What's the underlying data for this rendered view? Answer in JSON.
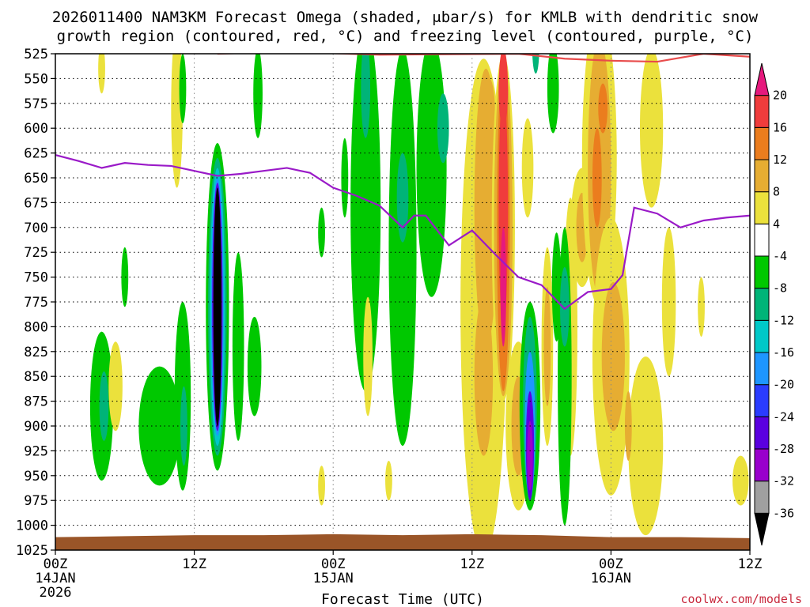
{
  "chart_data": {
    "type": "heatmap",
    "title_line1": "2026011400 NAM3KM Forecast Omega (shaded, μbar/s) for KMLB with dendritic snow",
    "title_line2": "growth region (contoured, red, °C) and freezing level (contoured, purple, °C)",
    "xlabel": "Forecast Time (UTC)",
    "ylabel": "",
    "credit": "coolwx.com/models",
    "xlim": [
      0,
      60
    ],
    "ylim": [
      1025,
      525
    ],
    "y_ticks": [
      525,
      550,
      575,
      600,
      625,
      650,
      675,
      700,
      725,
      750,
      775,
      800,
      825,
      850,
      875,
      900,
      925,
      950,
      975,
      1000,
      1025
    ],
    "x_ticks": [
      {
        "hour": 0,
        "label": "00Z",
        "sub1": "14JAN",
        "sub2": "2026"
      },
      {
        "hour": 12,
        "label": "12Z",
        "sub1": "",
        "sub2": ""
      },
      {
        "hour": 24,
        "label": "00Z",
        "sub1": "15JAN",
        "sub2": ""
      },
      {
        "hour": 36,
        "label": "12Z",
        "sub1": "",
        "sub2": ""
      },
      {
        "hour": 48,
        "label": "00Z",
        "sub1": "16JAN",
        "sub2": ""
      },
      {
        "hour": 60,
        "label": "12Z",
        "sub1": "",
        "sub2": ""
      }
    ],
    "colorbar": {
      "levels": [
        -36,
        -32,
        -28,
        -24,
        -20,
        -16,
        -12,
        -8,
        -4,
        4,
        8,
        12,
        16,
        20
      ],
      "labels": [
        "-36",
        "-32",
        "-28",
        "-24",
        "-20",
        "-16",
        "-12",
        "-8",
        "-4",
        "4",
        "8",
        "12",
        "16",
        "20"
      ],
      "bands": [
        "#000000",
        "#a0a0a0",
        "#9900cc",
        "#5a00e0",
        "#2a3cff",
        "#1e96ff",
        "#00c8c8",
        "#00b478",
        "#00c800",
        "#ffffff",
        "#ebe13c",
        "#e6ad32",
        "#eb7d1e",
        "#f03c3c",
        "#e6197d"
      ]
    },
    "freezing_level": {
      "color": "#9a1ac8",
      "hours": [
        0,
        2,
        4,
        6,
        8,
        10,
        12,
        14,
        16,
        18,
        20,
        22,
        24,
        26,
        28,
        30,
        31,
        32,
        34,
        36,
        38,
        40,
        42,
        44,
        46,
        48,
        49,
        50,
        52,
        54,
        56,
        58,
        60
      ],
      "pressure_hpa": [
        627,
        633,
        640,
        635,
        637,
        638,
        643,
        648,
        646,
        643,
        640,
        645,
        660,
        668,
        678,
        700,
        688,
        688,
        718,
        703,
        727,
        750,
        758,
        782,
        765,
        762,
        748,
        680,
        686,
        700,
        693,
        690,
        688
      ]
    },
    "dgz_contour": {
      "color": "#e84b4b",
      "hours": [
        14,
        20,
        28,
        40,
        44,
        48,
        52,
        56,
        60
      ],
      "pressure_hpa": [
        525,
        523,
        526,
        525,
        530,
        532,
        533,
        525,
        528
      ]
    },
    "terrain_color": "#9a5528",
    "omega_blobs": [
      {
        "hour": 4,
        "p": 540,
        "rh": 0.3,
        "rp": 25,
        "level": 4
      },
      {
        "hour": 10.5,
        "p": 580,
        "rh": 0.5,
        "rp": 80,
        "level": 4
      },
      {
        "hour": 11,
        "p": 560,
        "rh": 0.3,
        "rp": 35,
        "level": -4
      },
      {
        "hour": 17.5,
        "p": 565,
        "rh": 0.4,
        "rp": 45,
        "level": -4
      },
      {
        "hour": 4,
        "p": 880,
        "rh": 1.0,
        "rp": 75,
        "level": -4
      },
      {
        "hour": 4.2,
        "p": 880,
        "rh": 0.4,
        "rp": 35,
        "level": -8
      },
      {
        "hour": 5.2,
        "p": 860,
        "rh": 0.6,
        "rp": 45,
        "level": 4
      },
      {
        "hour": 9,
        "p": 900,
        "rh": 1.8,
        "rp": 60,
        "level": -4
      },
      {
        "hour": 6,
        "p": 750,
        "rh": 0.3,
        "rp": 30,
        "level": -4
      },
      {
        "hour": 11,
        "p": 870,
        "rh": 0.7,
        "rp": 95,
        "level": -4
      },
      {
        "hour": 11.1,
        "p": 900,
        "rh": 0.3,
        "rp": 40,
        "level": -8
      },
      {
        "hour": 14,
        "p": 780,
        "rh": 1.0,
        "rp": 165,
        "level": -4
      },
      {
        "hour": 14,
        "p": 780,
        "rh": 0.8,
        "rp": 150,
        "level": -8
      },
      {
        "hour": 14,
        "p": 780,
        "rh": 0.65,
        "rp": 140,
        "level": -12
      },
      {
        "hour": 14,
        "p": 780,
        "rh": 0.55,
        "rp": 130,
        "level": -16
      },
      {
        "hour": 14,
        "p": 780,
        "rh": 0.45,
        "rp": 125,
        "level": -24
      },
      {
        "hour": 14,
        "p": 780,
        "rh": 0.35,
        "rp": 120,
        "level": -36
      },
      {
        "hour": 15.8,
        "p": 820,
        "rh": 0.5,
        "rp": 95,
        "level": -4
      },
      {
        "hour": 17.2,
        "p": 840,
        "rh": 0.6,
        "rp": 50,
        "level": -4
      },
      {
        "hour": 23,
        "p": 705,
        "rh": 0.3,
        "rp": 25,
        "level": -4
      },
      {
        "hour": 23,
        "p": 960,
        "rh": 0.3,
        "rp": 20,
        "level": 4
      },
      {
        "hour": 25,
        "p": 650,
        "rh": 0.3,
        "rp": 40,
        "level": -4
      },
      {
        "hour": 26.8,
        "p": 680,
        "rh": 1.3,
        "rp": 185,
        "level": -4
      },
      {
        "hour": 26.8,
        "p": 560,
        "rh": 0.4,
        "rp": 50,
        "level": -8
      },
      {
        "hour": 27,
        "p": 830,
        "rh": 0.4,
        "rp": 60,
        "level": 4
      },
      {
        "hour": 30,
        "p": 720,
        "rh": 1.2,
        "rp": 200,
        "level": -4
      },
      {
        "hour": 30,
        "p": 670,
        "rh": 0.5,
        "rp": 45,
        "level": -8
      },
      {
        "hour": 32.5,
        "p": 640,
        "rh": 1.3,
        "rp": 130,
        "level": -4
      },
      {
        "hour": 33.5,
        "p": 600,
        "rh": 0.5,
        "rp": 35,
        "level": -8
      },
      {
        "hour": 28.8,
        "p": 955,
        "rh": 0.3,
        "rp": 20,
        "level": 4
      },
      {
        "hour": 37,
        "p": 780,
        "rh": 2.0,
        "rp": 250,
        "level": 4
      },
      {
        "hour": 37.2,
        "p": 680,
        "rh": 1.0,
        "rp": 140,
        "level": 8
      },
      {
        "hour": 37,
        "p": 850,
        "rh": 0.8,
        "rp": 80,
        "level": 8
      },
      {
        "hour": 37.5,
        "p": 590,
        "rh": 0.5,
        "rp": 40,
        "level": 8
      },
      {
        "hour": 38.7,
        "p": 700,
        "rh": 1.0,
        "rp": 175,
        "level": 4
      },
      {
        "hour": 38.7,
        "p": 700,
        "rh": 0.8,
        "rp": 170,
        "level": 8
      },
      {
        "hour": 38.7,
        "p": 700,
        "rh": 0.55,
        "rp": 165,
        "level": 12
      },
      {
        "hour": 38.7,
        "p": 680,
        "rh": 0.4,
        "rp": 120,
        "level": 16
      },
      {
        "hour": 38.7,
        "p": 560,
        "rh": 0.4,
        "rp": 40,
        "level": 16
      },
      {
        "hour": 38.7,
        "p": 760,
        "rh": 0.25,
        "rp": 60,
        "level": 20
      },
      {
        "hour": 40.8,
        "p": 640,
        "rh": 0.5,
        "rp": 50,
        "level": 4
      },
      {
        "hour": 40,
        "p": 900,
        "rh": 1.1,
        "rp": 85,
        "level": 4
      },
      {
        "hour": 40,
        "p": 900,
        "rh": 0.6,
        "rp": 50,
        "level": 8
      },
      {
        "hour": 41,
        "p": 880,
        "rh": 0.9,
        "rp": 105,
        "level": -4
      },
      {
        "hour": 41,
        "p": 880,
        "rh": 0.6,
        "rp": 90,
        "level": -8
      },
      {
        "hour": 41,
        "p": 900,
        "rh": 0.45,
        "rp": 75,
        "level": -16
      },
      {
        "hour": 41,
        "p": 920,
        "rh": 0.35,
        "rp": 55,
        "level": -24
      },
      {
        "hour": 41,
        "p": 930,
        "rh": 0.25,
        "rp": 35,
        "level": -28
      },
      {
        "hour": 41.5,
        "p": 520,
        "rh": 0.3,
        "rp": 25,
        "level": -8
      },
      {
        "hour": 42.5,
        "p": 820,
        "rh": 0.5,
        "rp": 100,
        "level": 4
      },
      {
        "hour": 42.5,
        "p": 820,
        "rh": 0.3,
        "rp": 60,
        "level": 8
      },
      {
        "hour": 43,
        "p": 560,
        "rh": 0.5,
        "rp": 45,
        "level": -4
      },
      {
        "hour": 43.3,
        "p": 760,
        "rh": 0.4,
        "rp": 55,
        "level": -4
      },
      {
        "hour": 44.5,
        "p": 800,
        "rh": 0.6,
        "rp": 130,
        "level": 4
      },
      {
        "hour": 44,
        "p": 850,
        "rh": 0.6,
        "rp": 150,
        "level": -4
      },
      {
        "hour": 44,
        "p": 780,
        "rh": 0.4,
        "rp": 40,
        "level": -8
      },
      {
        "hour": 45.5,
        "p": 700,
        "rh": 1.0,
        "rp": 60,
        "level": 4
      },
      {
        "hour": 45.5,
        "p": 700,
        "rh": 0.5,
        "rp": 35,
        "level": 8
      },
      {
        "hour": 46.5,
        "p": 560,
        "rh": 0.5,
        "rp": 60,
        "level": 4
      },
      {
        "hour": 47,
        "p": 630,
        "rh": 1.5,
        "rp": 150,
        "level": 4
      },
      {
        "hour": 47,
        "p": 640,
        "rh": 1.0,
        "rp": 130,
        "level": 8
      },
      {
        "hour": 46.8,
        "p": 650,
        "rh": 0.4,
        "rp": 50,
        "level": 12
      },
      {
        "hour": 47.3,
        "p": 580,
        "rh": 0.4,
        "rp": 25,
        "level": 12
      },
      {
        "hour": 48,
        "p": 830,
        "rh": 1.6,
        "rp": 140,
        "level": 4
      },
      {
        "hour": 48.2,
        "p": 830,
        "rh": 1.0,
        "rp": 75,
        "level": 8
      },
      {
        "hour": 51.5,
        "p": 600,
        "rh": 1.0,
        "rp": 80,
        "level": 4
      },
      {
        "hour": 51,
        "p": 920,
        "rh": 1.5,
        "rp": 90,
        "level": 4
      },
      {
        "hour": 49.5,
        "p": 900,
        "rh": 0.3,
        "rp": 35,
        "level": 8
      },
      {
        "hour": 53,
        "p": 775,
        "rh": 0.6,
        "rp": 75,
        "level": 4
      },
      {
        "hour": 55.8,
        "p": 780,
        "rh": 0.3,
        "rp": 30,
        "level": 4
      },
      {
        "hour": 59.2,
        "p": 955,
        "rh": 0.7,
        "rp": 25,
        "level": 4
      }
    ]
  }
}
